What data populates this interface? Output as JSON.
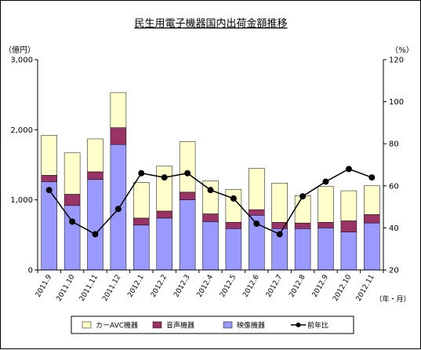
{
  "chart_data": {
    "type": "bar",
    "stacked": true,
    "title": "民生用電子機器国内出荷金額推移",
    "y_left_unit": "（億円）",
    "y_right_unit": "（%）",
    "x_unit": "（年・月）",
    "ylim_left": [
      0,
      3000
    ],
    "ylim_right": [
      20,
      120
    ],
    "yticks_left": [
      "0",
      "1,000",
      "2,000",
      "3,000"
    ],
    "yticks_left_values": [
      0,
      1000,
      2000,
      3000
    ],
    "yticks_right": [
      "20",
      "40",
      "60",
      "80",
      "100",
      "120"
    ],
    "yticks_right_values": [
      20,
      40,
      60,
      80,
      100,
      120
    ],
    "categories": [
      "2011.9",
      "2011.10",
      "2011.11",
      "2011.12",
      "2012.1",
      "2012.2",
      "2012.3",
      "2012.4",
      "2012.5",
      "2012.6",
      "2012.7",
      "2012.8",
      "2012.9",
      "2012.10",
      "2012.11"
    ],
    "series": [
      {
        "name": "映像機器",
        "axis": "left",
        "color": "#9999ff",
        "values": [
          1260,
          920,
          1290,
          1790,
          640,
          740,
          1000,
          690,
          590,
          780,
          590,
          590,
          600,
          540,
          670
        ]
      },
      {
        "name": "音声機器",
        "axis": "left",
        "color": "#993366",
        "values": [
          90,
          160,
          110,
          240,
          100,
          100,
          110,
          110,
          90,
          80,
          90,
          80,
          80,
          160,
          120
        ]
      },
      {
        "name": "カーAVC機器",
        "axis": "left",
        "color": "#ffffcc",
        "values": [
          570,
          590,
          470,
          500,
          510,
          640,
          720,
          470,
          470,
          590,
          560,
          390,
          510,
          430,
          410
        ]
      },
      {
        "name": "前年比",
        "axis": "right",
        "type": "line",
        "color": "#000000",
        "values": [
          58,
          43,
          37,
          49,
          66,
          64,
          66,
          58,
          54,
          42,
          37,
          55,
          62,
          68,
          64
        ]
      }
    ],
    "legend": [
      {
        "name": "カーAVC機器",
        "kind": "box",
        "color": "#ffffcc"
      },
      {
        "name": "音声機器",
        "kind": "box",
        "color": "#993366"
      },
      {
        "name": "映像機器",
        "kind": "box",
        "color": "#9999ff"
      },
      {
        "name": "前年比",
        "kind": "line",
        "color": "#000000"
      }
    ],
    "legend_position": "bottom",
    "grid": false
  }
}
